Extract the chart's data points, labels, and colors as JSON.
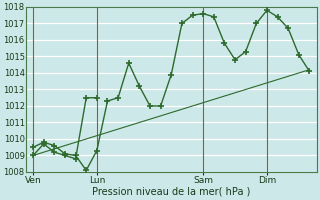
{
  "bg_color": "#cce8e8",
  "grid_color": "#ffffff",
  "line_color": "#2d6a2d",
  "xlabel": "Pression niveau de la mer( hPa )",
  "ylim": [
    1008,
    1018
  ],
  "yticks": [
    1008,
    1009,
    1010,
    1011,
    1012,
    1013,
    1014,
    1015,
    1016,
    1017,
    1018
  ],
  "day_labels": [
    "Ven",
    "Lun",
    "Sam",
    "Dim"
  ],
  "day_positions": [
    0,
    36,
    96,
    132
  ],
  "vline_positions": [
    0,
    36,
    96,
    132
  ],
  "series_main_x": [
    0,
    6,
    12,
    18,
    24,
    30,
    36,
    42,
    48,
    54,
    60,
    66,
    72,
    78,
    84,
    90,
    96,
    102,
    108,
    114,
    120,
    126,
    132,
    138,
    144,
    150,
    156
  ],
  "series_main_y": [
    1009.5,
    1009.8,
    1009.6,
    1009.1,
    1009.0,
    1008.1,
    1009.3,
    1012.3,
    1012.5,
    1014.6,
    1013.2,
    1012.0,
    1012.0,
    1013.9,
    1017.0,
    1017.5,
    1017.6,
    1017.4,
    1015.8,
    1014.8,
    1015.3,
    1017.0,
    1017.8,
    1017.4,
    1016.7,
    1015.1,
    1014.1
  ],
  "series2_x": [
    0,
    6,
    12,
    18,
    24,
    30,
    36
  ],
  "series2_y": [
    1009.0,
    1009.7,
    1009.2,
    1009.0,
    1008.8,
    1012.5,
    1012.5
  ],
  "trend_x": [
    0,
    156
  ],
  "trend_y": [
    1009.0,
    1014.2
  ],
  "xlim": [
    -4,
    160
  ],
  "figsize": [
    3.2,
    2.0
  ],
  "dpi": 100
}
